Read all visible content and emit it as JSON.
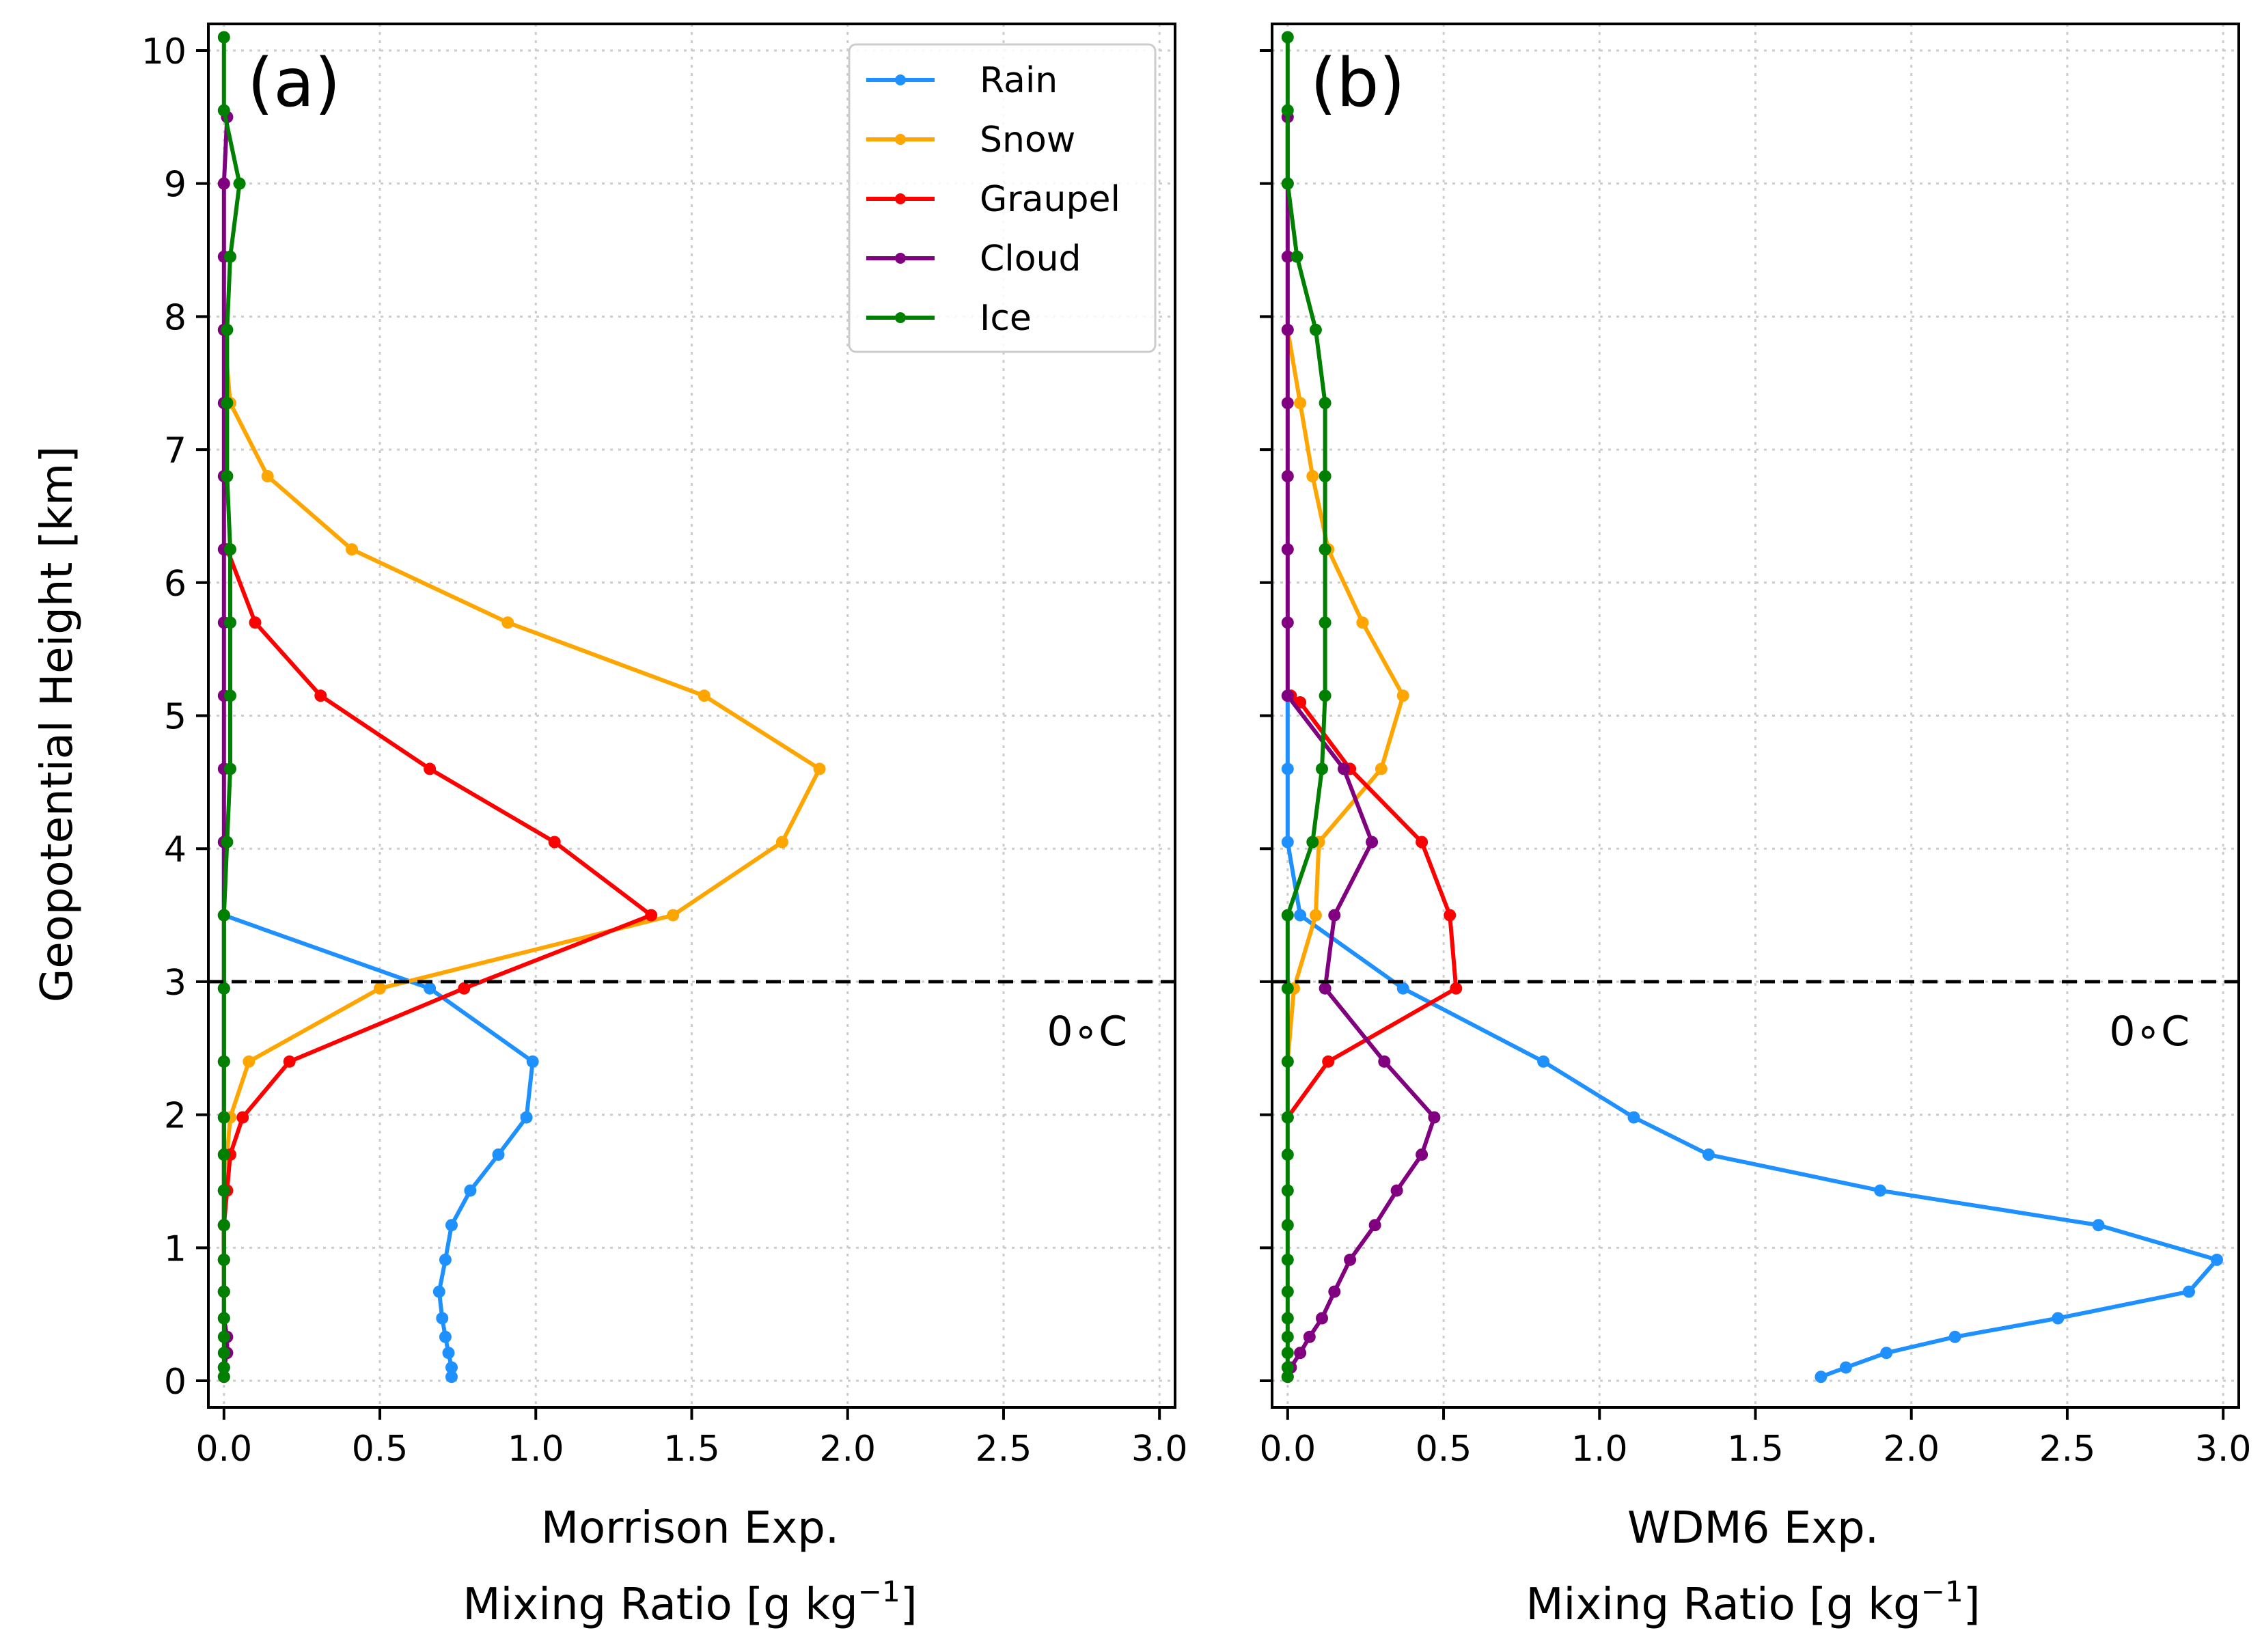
{
  "chart_data": [
    {
      "type": "line",
      "panel_label": "(a)",
      "xlabel_line1": "Morrison Exp.",
      "xlabel_line2": "Mixing Ratio [g kg",
      "xlabel_unit_sup": "−1",
      "xlabel_line2_end": "]",
      "ylabel": "Geopotential Height  [km]",
      "xlim": [
        -0.05,
        3.05
      ],
      "ylim": [
        -0.2,
        10.2
      ],
      "xticks": [
        "0.0",
        "0.5",
        "1.0",
        "1.5",
        "2.0",
        "2.5",
        "3.0"
      ],
      "yticks": [
        "0",
        "1",
        "2",
        "3",
        "4",
        "5",
        "6",
        "7",
        "8",
        "9",
        "10"
      ],
      "grid": true,
      "legend": {
        "position": "top-right",
        "entries": [
          "Rain",
          "Snow",
          "Graupel",
          "Cloud",
          "Ice"
        ]
      },
      "annotation": {
        "text": "0∘C",
        "hline_y": 3
      },
      "series": [
        {
          "name": "Rain",
          "color": "#1e90ff",
          "points": [
            [
              0,
              4.05
            ],
            [
              0,
              3.5
            ],
            [
              0.66,
              2.95
            ],
            [
              0.99,
              2.4
            ],
            [
              0.97,
              1.98
            ],
            [
              0.88,
              1.7
            ],
            [
              0.79,
              1.43
            ],
            [
              0.73,
              1.17
            ],
            [
              0.71,
              0.91
            ],
            [
              0.69,
              0.67
            ],
            [
              0.7,
              0.47
            ],
            [
              0.71,
              0.33
            ],
            [
              0.72,
              0.21
            ],
            [
              0.73,
              0.1
            ],
            [
              0.73,
              0.03
            ]
          ]
        },
        {
          "name": "Snow",
          "color": "#ffa500",
          "points": [
            [
              0,
              7.9
            ],
            [
              0.02,
              7.35
            ],
            [
              0.14,
              6.8
            ],
            [
              0.41,
              6.25
            ],
            [
              0.91,
              5.7
            ],
            [
              1.54,
              5.15
            ],
            [
              1.91,
              4.6
            ],
            [
              1.79,
              4.05
            ],
            [
              1.44,
              3.5
            ],
            [
              0.5,
              2.95
            ],
            [
              0.08,
              2.4
            ],
            [
              0.02,
              1.98
            ],
            [
              0.01,
              1.7
            ],
            [
              0,
              1.43
            ],
            [
              0,
              1.17
            ],
            [
              0,
              0.91
            ],
            [
              0,
              0.67
            ]
          ]
        },
        {
          "name": "Graupel",
          "color": "#ff0000",
          "points": [
            [
              0.01,
              6.25
            ],
            [
              0.1,
              5.7
            ],
            [
              0.31,
              5.15
            ],
            [
              0.66,
              4.6
            ],
            [
              1.06,
              4.05
            ],
            [
              1.37,
              3.5
            ],
            [
              0.77,
              2.95
            ],
            [
              0.21,
              2.4
            ],
            [
              0.06,
              1.98
            ],
            [
              0.02,
              1.7
            ],
            [
              0.01,
              1.43
            ],
            [
              0,
              1.17
            ],
            [
              0,
              0.91
            ]
          ]
        },
        {
          "name": "Cloud",
          "color": "#800080",
          "points": [
            [
              0.01,
              9.5
            ],
            [
              0,
              9
            ],
            [
              0,
              8.45
            ],
            [
              0,
              7.9
            ],
            [
              0,
              7.35
            ],
            [
              0,
              6.8
            ],
            [
              0,
              6.25
            ],
            [
              0,
              5.7
            ],
            [
              0,
              5.15
            ],
            [
              0,
              4.6
            ],
            [
              0,
              4.05
            ],
            [
              0,
              3.5
            ],
            [
              0,
              2.95
            ],
            [
              0,
              2.4
            ],
            [
              0,
              1.98
            ],
            [
              0,
              1.7
            ],
            [
              0,
              1.43
            ],
            [
              0,
              1.17
            ],
            [
              0,
              0.91
            ],
            [
              0,
              0.67
            ],
            [
              0,
              0.47
            ],
            [
              0.01,
              0.33
            ],
            [
              0.01,
              0.21
            ],
            [
              0,
              0.1
            ],
            [
              0,
              0.03
            ]
          ]
        },
        {
          "name": "Ice",
          "color": "#008000",
          "points": [
            [
              0,
              10.1
            ],
            [
              0,
              9.55
            ],
            [
              0.05,
              9
            ],
            [
              0.02,
              8.45
            ],
            [
              0.01,
              7.9
            ],
            [
              0.01,
              7.35
            ],
            [
              0.01,
              6.8
            ],
            [
              0.02,
              6.25
            ],
            [
              0.02,
              5.7
            ],
            [
              0.02,
              5.15
            ],
            [
              0.02,
              4.6
            ],
            [
              0.01,
              4.05
            ],
            [
              0,
              3.5
            ],
            [
              0,
              2.95
            ],
            [
              0,
              2.4
            ],
            [
              0,
              1.98
            ],
            [
              0,
              1.7
            ],
            [
              0,
              1.43
            ],
            [
              0,
              1.17
            ],
            [
              0,
              0.91
            ],
            [
              0,
              0.67
            ],
            [
              0,
              0.47
            ],
            [
              0,
              0.33
            ],
            [
              0,
              0.21
            ],
            [
              0,
              0.1
            ],
            [
              0,
              0.03
            ]
          ]
        }
      ]
    },
    {
      "type": "line",
      "panel_label": "(b)",
      "xlabel_line1": "WDM6 Exp.",
      "xlabel_line2": "Mixing Ratio [g kg",
      "xlabel_unit_sup": "−1",
      "xlabel_line2_end": "]",
      "xlim": [
        -0.05,
        3.05
      ],
      "ylim": [
        -0.2,
        10.2
      ],
      "xticks": [
        "0.0",
        "0.5",
        "1.0",
        "1.5",
        "2.0",
        "2.5",
        "3.0"
      ],
      "yticks": [
        "0",
        "1",
        "2",
        "3",
        "4",
        "5",
        "6",
        "7",
        "8",
        "9",
        "10"
      ],
      "grid": true,
      "annotation": {
        "text": "0∘C",
        "hline_y": 3
      },
      "series": [
        {
          "name": "Rain",
          "color": "#1e90ff",
          "points": [
            [
              0,
              5.15
            ],
            [
              0,
              4.6
            ],
            [
              0,
              4.05
            ],
            [
              0.04,
              3.5
            ],
            [
              0.37,
              2.95
            ],
            [
              0.82,
              2.4
            ],
            [
              1.11,
              1.98
            ],
            [
              1.35,
              1.7
            ],
            [
              1.9,
              1.43
            ],
            [
              2.6,
              1.17
            ],
            [
              2.98,
              0.91
            ],
            [
              2.89,
              0.67
            ],
            [
              2.47,
              0.47
            ],
            [
              2.14,
              0.33
            ],
            [
              1.92,
              0.21
            ],
            [
              1.79,
              0.1
            ],
            [
              1.71,
              0.03
            ]
          ]
        },
        {
          "name": "Snow",
          "color": "#ffa500",
          "points": [
            [
              0,
              8.45
            ],
            [
              0,
              7.9
            ],
            [
              0.04,
              7.35
            ],
            [
              0.08,
              6.8
            ],
            [
              0.13,
              6.25
            ],
            [
              0.24,
              5.7
            ],
            [
              0.37,
              5.15
            ],
            [
              0.3,
              4.6
            ],
            [
              0.1,
              4.05
            ],
            [
              0.09,
              3.5
            ],
            [
              0.02,
              2.95
            ],
            [
              0,
              2.4
            ]
          ]
        },
        {
          "name": "Graupel",
          "color": "#ff0000",
          "points": [
            [
              0.01,
              5.15
            ],
            [
              0.04,
              5.1
            ],
            [
              0.2,
              4.6
            ],
            [
              0.43,
              4.05
            ],
            [
              0.52,
              3.5
            ],
            [
              0.54,
              2.95
            ],
            [
              0.13,
              2.4
            ],
            [
              0,
              1.98
            ]
          ]
        },
        {
          "name": "Cloud",
          "color": "#800080",
          "points": [
            [
              0,
              9.5
            ],
            [
              0,
              9
            ],
            [
              0,
              8.45
            ],
            [
              0,
              7.9
            ],
            [
              0,
              7.35
            ],
            [
              0,
              6.8
            ],
            [
              0,
              6.25
            ],
            [
              0,
              5.7
            ],
            [
              0,
              5.15
            ],
            [
              0.18,
              4.6
            ],
            [
              0.27,
              4.05
            ],
            [
              0.15,
              3.5
            ],
            [
              0.12,
              2.95
            ],
            [
              0.31,
              2.4
            ],
            [
              0.47,
              1.98
            ],
            [
              0.43,
              1.7
            ],
            [
              0.35,
              1.43
            ],
            [
              0.28,
              1.17
            ],
            [
              0.2,
              0.91
            ],
            [
              0.15,
              0.67
            ],
            [
              0.11,
              0.47
            ],
            [
              0.07,
              0.33
            ],
            [
              0.04,
              0.21
            ],
            [
              0.01,
              0.1
            ],
            [
              0,
              0.03
            ]
          ]
        },
        {
          "name": "Ice",
          "color": "#008000",
          "points": [
            [
              0,
              10.1
            ],
            [
              0,
              9.55
            ],
            [
              0,
              9
            ],
            [
              0.03,
              8.45
            ],
            [
              0.09,
              7.9
            ],
            [
              0.12,
              7.35
            ],
            [
              0.12,
              6.8
            ],
            [
              0.12,
              6.25
            ],
            [
              0.12,
              5.7
            ],
            [
              0.12,
              5.15
            ],
            [
              0.11,
              4.6
            ],
            [
              0.08,
              4.05
            ],
            [
              0,
              3.5
            ],
            [
              0,
              2.95
            ],
            [
              0,
              2.4
            ],
            [
              0,
              1.98
            ],
            [
              0,
              1.7
            ],
            [
              0,
              1.43
            ],
            [
              0,
              1.17
            ],
            [
              0,
              0.91
            ],
            [
              0,
              0.67
            ],
            [
              0,
              0.47
            ],
            [
              0,
              0.33
            ],
            [
              0,
              0.21
            ],
            [
              0,
              0.1
            ],
            [
              0,
              0.03
            ]
          ]
        }
      ]
    }
  ]
}
